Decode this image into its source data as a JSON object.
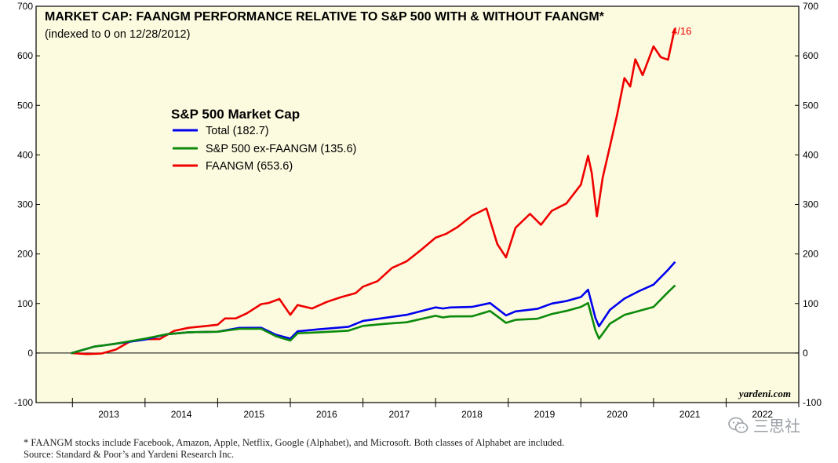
{
  "chart_data": {
    "type": "line",
    "title": "MARKET CAP: FAANGM PERFORMANCE RELATIVE TO S&P 500 WITH & WITHOUT FAANGM*",
    "subtitle": "(indexed to 0 on 12/28/2012)",
    "legend": {
      "title": "S&P 500 Market Cap",
      "placement": "upper-left",
      "entries": [
        {
          "label": "Total (182.7)",
          "color": "#0000ee"
        },
        {
          "label": "S&P 500 ex-FAANGM (135.6)",
          "color": "#0b8a0b"
        },
        {
          "label": "FAANGM (653.6)",
          "color": "#ee0000"
        }
      ]
    },
    "ylim": [
      -100,
      700
    ],
    "yticks": [
      -100,
      0,
      100,
      200,
      300,
      400,
      500,
      600,
      700
    ],
    "yticks_right": true,
    "xlim": [
      2012.5,
      2023.0
    ],
    "xtick_labels": [
      "2013",
      "2014",
      "2015",
      "2016",
      "2017",
      "2018",
      "2019",
      "2020",
      "2021",
      "2022"
    ],
    "reference_line": 0,
    "grid": false,
    "background_color": "#fdfbdf",
    "end_annotation": "4/16",
    "brand": "yardeni.com",
    "series": [
      {
        "name": "FAANGM",
        "color": "#ee0000",
        "x": [
          2012.99,
          2013.2,
          2013.4,
          2013.6,
          2013.8,
          2014.0,
          2014.2,
          2014.4,
          2014.6,
          2014.8,
          2015.0,
          2015.1,
          2015.25,
          2015.4,
          2015.6,
          2015.7,
          2015.85,
          2016.0,
          2016.1,
          2016.3,
          2016.5,
          2016.7,
          2016.9,
          2017.0,
          2017.2,
          2017.4,
          2017.6,
          2017.8,
          2018.0,
          2018.15,
          2018.3,
          2018.5,
          2018.7,
          2018.85,
          2018.97,
          2019.1,
          2019.3,
          2019.45,
          2019.6,
          2019.8,
          2020.0,
          2020.1,
          2020.15,
          2020.22,
          2020.3,
          2020.4,
          2020.5,
          2020.6,
          2020.68,
          2020.75,
          2020.85,
          2021.0,
          2021.1,
          2021.2,
          2021.29
        ],
        "values": [
          0,
          -3,
          0,
          10,
          22,
          28,
          30,
          42,
          50,
          55,
          60,
          68,
          70,
          82,
          96,
          100,
          110,
          80,
          95,
          90,
          105,
          110,
          120,
          135,
          148,
          170,
          185,
          210,
          230,
          240,
          255,
          280,
          290,
          220,
          195,
          250,
          280,
          260,
          290,
          300,
          340,
          400,
          360,
          275,
          355,
          420,
          480,
          555,
          540,
          590,
          560,
          620,
          600,
          590,
          653.6
        ]
      },
      {
        "name": "Total",
        "color": "#0000ee",
        "x": [
          2012.99,
          2013.3,
          2013.6,
          2014.0,
          2014.3,
          2014.6,
          2015.0,
          2015.3,
          2015.6,
          2015.8,
          2016.0,
          2016.1,
          2016.4,
          2016.8,
          2017.0,
          2017.3,
          2017.6,
          2018.0,
          2018.1,
          2018.2,
          2018.5,
          2018.75,
          2018.97,
          2019.1,
          2019.4,
          2019.6,
          2019.8,
          2020.0,
          2020.1,
          2020.2,
          2020.25,
          2020.4,
          2020.6,
          2020.8,
          2021.0,
          2021.2,
          2021.29
        ],
        "values": [
          0,
          12,
          20,
          30,
          36,
          42,
          45,
          48,
          50,
          38,
          32,
          42,
          48,
          55,
          62,
          70,
          78,
          95,
          88,
          92,
          95,
          98,
          75,
          85,
          92,
          98,
          105,
          115,
          125,
          70,
          55,
          90,
          108,
          125,
          140,
          165,
          182.7
        ]
      },
      {
        "name": "S&P 500 ex-FAANGM",
        "color": "#0b8a0b",
        "x": [
          2012.99,
          2013.3,
          2013.6,
          2014.0,
          2014.3,
          2014.6,
          2015.0,
          2015.3,
          2015.6,
          2015.8,
          2016.0,
          2016.1,
          2016.4,
          2016.8,
          2017.0,
          2017.3,
          2017.6,
          2018.0,
          2018.1,
          2018.2,
          2018.5,
          2018.75,
          2018.97,
          2019.1,
          2019.4,
          2019.6,
          2019.8,
          2020.0,
          2020.1,
          2020.2,
          2020.25,
          2020.4,
          2020.6,
          2020.8,
          2021.0,
          2021.2,
          2021.29
        ],
        "values": [
          0,
          12,
          20,
          32,
          36,
          42,
          45,
          46,
          48,
          35,
          28,
          38,
          42,
          47,
          52,
          58,
          63,
          78,
          70,
          74,
          76,
          82,
          60,
          68,
          72,
          77,
          85,
          95,
          98,
          45,
          30,
          62,
          75,
          85,
          95,
          120,
          135.6
        ]
      }
    ]
  },
  "footnotes": {
    "note": "*  FAANGM stocks include Facebook, Amazon, Apple, Netflix, Google (Alphabet), and Microsoft. Both classes of Alphabet are included.",
    "source": "Source: Standard & Poor’s and Yardeni Research Inc."
  },
  "watermark": {
    "text": "三思社",
    "icon": "wechat-icon"
  }
}
